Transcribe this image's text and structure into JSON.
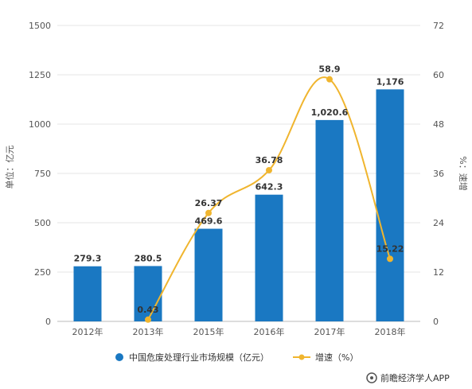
{
  "chart_data": {
    "type": "bar",
    "categories": [
      "2012年",
      "2013年",
      "2015年",
      "2016年",
      "2017年",
      "2018年"
    ],
    "series": [
      {
        "name": "中国危废处理行业市场规模（亿元）",
        "type": "bar",
        "axis": "left",
        "values": [
          279.3,
          280.5,
          469.6,
          642.3,
          1020.6,
          1176
        ],
        "labels": [
          "279.3",
          "280.5",
          "469.6",
          "642.3",
          "1,020.6",
          "1,176"
        ],
        "color": "#1a78c2"
      },
      {
        "name": "增速（%）",
        "type": "line",
        "axis": "right",
        "values": [
          null,
          0.43,
          26.37,
          36.78,
          58.9,
          15.22
        ],
        "labels": [
          "",
          "0.43",
          "26.37",
          "36.78",
          "58.9",
          "15.22"
        ],
        "color": "#f0b52e"
      }
    ],
    "ylabel": "单位：亿元",
    "y2label": "%：速增",
    "ylim": [
      0,
      1500
    ],
    "y2lim": [
      0,
      72
    ],
    "yticks": [
      "0",
      "250",
      "500",
      "750",
      "1000",
      "1250",
      "1500"
    ],
    "y2ticks": [
      "0",
      "12",
      "24",
      "36",
      "48",
      "60",
      "72"
    ],
    "grid": true,
    "legend": "bottom"
  },
  "source": "前瞻经济学人APP"
}
